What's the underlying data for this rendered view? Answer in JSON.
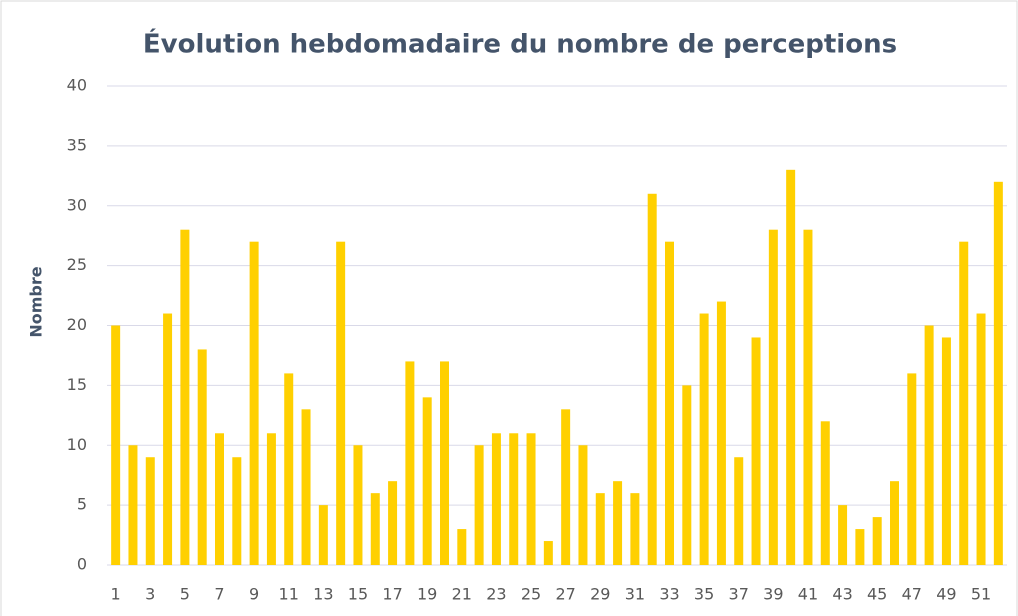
{
  "chart_data": {
    "type": "bar",
    "title": "Évolution hebdomadaire du nombre de perceptions",
    "y_label": "Nombre",
    "categories": [
      "1",
      null,
      "3",
      null,
      "5",
      null,
      "7",
      null,
      "9",
      null,
      "11",
      null,
      "13",
      null,
      "15",
      null,
      "17",
      null,
      "19",
      null,
      "21",
      null,
      "23",
      null,
      "25",
      null,
      "27",
      null,
      "29",
      null,
      "31",
      null,
      "33",
      null,
      "35",
      null,
      "37",
      null,
      "39",
      null,
      "41",
      null,
      "43",
      null,
      "45",
      null,
      "47",
      null,
      "49",
      null,
      "51",
      null
    ],
    "values": [
      20,
      10,
      9,
      21,
      28,
      18,
      11,
      9,
      27,
      11,
      16,
      13,
      5,
      27,
      10,
      6,
      7,
      17,
      14,
      17,
      3,
      10,
      11,
      11,
      11,
      2,
      13,
      10,
      6,
      7,
      6,
      31,
      27,
      15,
      21,
      22,
      9,
      19,
      28,
      33,
      28,
      12,
      5,
      3,
      4,
      7,
      16,
      20,
      19,
      27,
      21,
      32
    ],
    "color": "#ffd000",
    "ylim": [
      0,
      40
    ],
    "yticks": [
      0,
      5,
      10,
      15,
      20,
      25,
      30,
      35,
      40
    ],
    "grid": true
  }
}
